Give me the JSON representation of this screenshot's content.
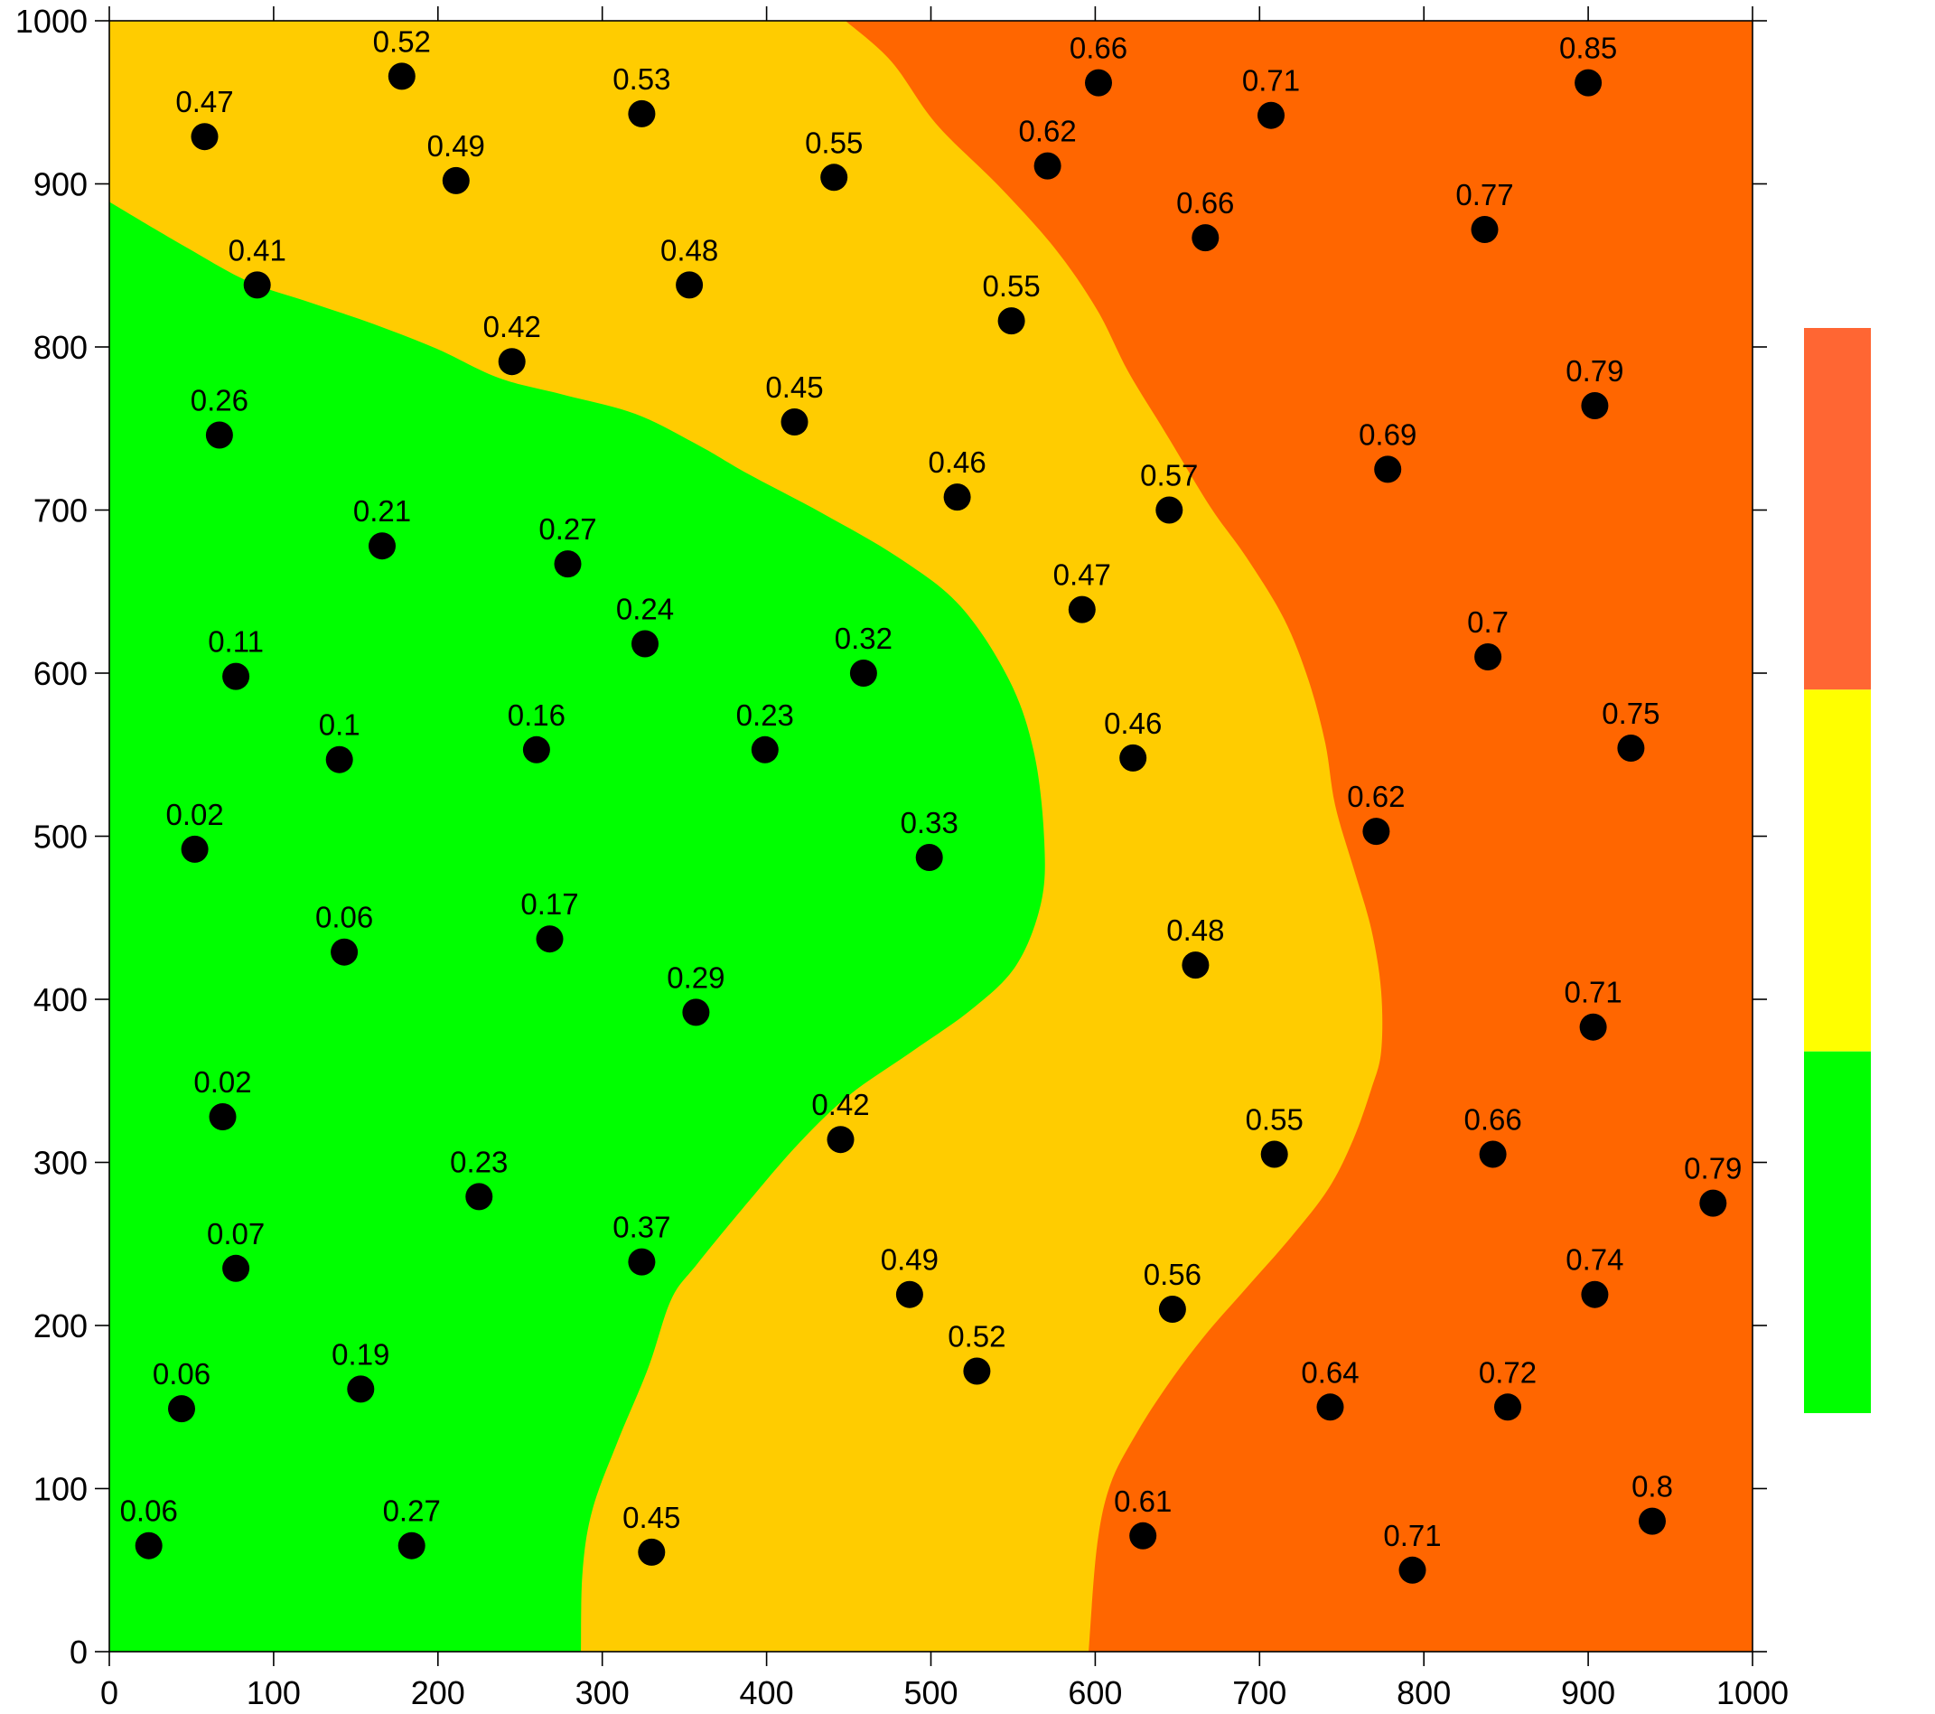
{
  "chart_data": {
    "type": "scatter",
    "xlim": [
      0,
      1000
    ],
    "ylim": [
      0,
      1000
    ],
    "xticks": [
      0,
      100,
      200,
      300,
      400,
      500,
      600,
      700,
      800,
      900,
      1000
    ],
    "yticks": [
      0,
      100,
      200,
      300,
      400,
      500,
      600,
      700,
      800,
      900,
      1000
    ],
    "grid": false,
    "background_color": "#FFCC00",
    "contour_regions": [
      {
        "color": "#00FF00",
        "boundary": [
          [
            0,
            889
          ],
          [
            47,
            861
          ],
          [
            85,
            840
          ],
          [
            123,
            827
          ],
          [
            161,
            814
          ],
          [
            199,
            799
          ],
          [
            237,
            781
          ],
          [
            275,
            771
          ],
          [
            320,
            759
          ],
          [
            358,
            740
          ],
          [
            389,
            722
          ],
          [
            434,
            698
          ],
          [
            480,
            671
          ],
          [
            518,
            641
          ],
          [
            548,
            595
          ],
          [
            563,
            550
          ],
          [
            569,
            497
          ],
          [
            567,
            459
          ],
          [
            552,
            421
          ],
          [
            525,
            394
          ],
          [
            487,
            367
          ],
          [
            450,
            341
          ],
          [
            419,
            311
          ],
          [
            389,
            276
          ],
          [
            358,
            238
          ],
          [
            342,
            216
          ],
          [
            328,
            174
          ],
          [
            309,
            128
          ],
          [
            294,
            87
          ],
          [
            288,
            49
          ],
          [
            287,
            0
          ]
        ],
        "closing_vertices": [
          [
            0,
            0
          ]
        ]
      },
      {
        "color": "#FF6600",
        "boundary": [
          [
            448,
            1000
          ],
          [
            476,
            975
          ],
          [
            503,
            937
          ],
          [
            541,
            899
          ],
          [
            575,
            861
          ],
          [
            601,
            823
          ],
          [
            620,
            785
          ],
          [
            643,
            747
          ],
          [
            670,
            702
          ],
          [
            692,
            671
          ],
          [
            715,
            633
          ],
          [
            730,
            595
          ],
          [
            740,
            557
          ],
          [
            746,
            519
          ],
          [
            757,
            481
          ],
          [
            768,
            443
          ],
          [
            774,
            405
          ],
          [
            774,
            368
          ],
          [
            768,
            345
          ],
          [
            757,
            314
          ],
          [
            742,
            284
          ],
          [
            719,
            254
          ],
          [
            692,
            223
          ],
          [
            666,
            193
          ],
          [
            643,
            162
          ],
          [
            624,
            132
          ],
          [
            609,
            102
          ],
          [
            601,
            64
          ],
          [
            596,
            0
          ]
        ],
        "closing_vertices": [
          [
            1000,
            0
          ],
          [
            1000,
            1000
          ]
        ]
      }
    ],
    "points": [
      {
        "x": 58,
        "y": 929,
        "value": 0.47
      },
      {
        "x": 178,
        "y": 966,
        "value": 0.52
      },
      {
        "x": 211,
        "y": 902,
        "value": 0.49
      },
      {
        "x": 324,
        "y": 943,
        "value": 0.53
      },
      {
        "x": 441,
        "y": 904,
        "value": 0.55
      },
      {
        "x": 90,
        "y": 838,
        "value": 0.41
      },
      {
        "x": 353,
        "y": 838,
        "value": 0.48
      },
      {
        "x": 245,
        "y": 791,
        "value": 0.42
      },
      {
        "x": 67,
        "y": 746,
        "value": 0.26
      },
      {
        "x": 417,
        "y": 754,
        "value": 0.45
      },
      {
        "x": 166,
        "y": 678,
        "value": 0.21
      },
      {
        "x": 279,
        "y": 667,
        "value": 0.27
      },
      {
        "x": 326,
        "y": 618,
        "value": 0.24
      },
      {
        "x": 77,
        "y": 598,
        "value": 0.11
      },
      {
        "x": 459,
        "y": 600,
        "value": 0.32
      },
      {
        "x": 140,
        "y": 547,
        "value": 0.1
      },
      {
        "x": 260,
        "y": 553,
        "value": 0.16
      },
      {
        "x": 399,
        "y": 553,
        "value": 0.23
      },
      {
        "x": 52,
        "y": 492,
        "value": 0.02
      },
      {
        "x": 499,
        "y": 487,
        "value": 0.33
      },
      {
        "x": 143,
        "y": 429,
        "value": 0.06
      },
      {
        "x": 268,
        "y": 437,
        "value": 0.17
      },
      {
        "x": 357,
        "y": 392,
        "value": 0.29
      },
      {
        "x": 69,
        "y": 328,
        "value": 0.02
      },
      {
        "x": 225,
        "y": 279,
        "value": 0.23
      },
      {
        "x": 445,
        "y": 314,
        "value": 0.42
      },
      {
        "x": 77,
        "y": 235,
        "value": 0.07
      },
      {
        "x": 324,
        "y": 239,
        "value": 0.37
      },
      {
        "x": 487,
        "y": 219,
        "value": 0.49
      },
      {
        "x": 528,
        "y": 172,
        "value": 0.52
      },
      {
        "x": 44,
        "y": 149,
        "value": 0.06
      },
      {
        "x": 153,
        "y": 161,
        "value": 0.19
      },
      {
        "x": 24,
        "y": 65,
        "value": 0.06
      },
      {
        "x": 184,
        "y": 65,
        "value": 0.27
      },
      {
        "x": 330,
        "y": 61,
        "value": 0.45
      },
      {
        "x": 602,
        "y": 962,
        "value": 0.66
      },
      {
        "x": 707,
        "y": 942,
        "value": 0.71
      },
      {
        "x": 900,
        "y": 962,
        "value": 0.85
      },
      {
        "x": 571,
        "y": 911,
        "value": 0.62
      },
      {
        "x": 667,
        "y": 867,
        "value": 0.66
      },
      {
        "x": 837,
        "y": 872,
        "value": 0.77
      },
      {
        "x": 549,
        "y": 816,
        "value": 0.55
      },
      {
        "x": 904,
        "y": 764,
        "value": 0.79
      },
      {
        "x": 778,
        "y": 725,
        "value": 0.69
      },
      {
        "x": 516,
        "y": 708,
        "value": 0.46
      },
      {
        "x": 645,
        "y": 700,
        "value": 0.57
      },
      {
        "x": 592,
        "y": 639,
        "value": 0.47
      },
      {
        "x": 839,
        "y": 610,
        "value": 0.7
      },
      {
        "x": 926,
        "y": 554,
        "value": 0.75
      },
      {
        "x": 623,
        "y": 548,
        "value": 0.46
      },
      {
        "x": 771,
        "y": 503,
        "value": 0.62
      },
      {
        "x": 661,
        "y": 421,
        "value": 0.48
      },
      {
        "x": 903,
        "y": 383,
        "value": 0.71
      },
      {
        "x": 709,
        "y": 305,
        "value": 0.55
      },
      {
        "x": 842,
        "y": 305,
        "value": 0.66
      },
      {
        "x": 976,
        "y": 275,
        "value": 0.79
      },
      {
        "x": 904,
        "y": 219,
        "value": 0.74
      },
      {
        "x": 647,
        "y": 210,
        "value": 0.56
      },
      {
        "x": 743,
        "y": 150,
        "value": 0.64
      },
      {
        "x": 851,
        "y": 150,
        "value": 0.72
      },
      {
        "x": 939,
        "y": 80,
        "value": 0.8
      },
      {
        "x": 629,
        "y": 71,
        "value": 0.61
      },
      {
        "x": 793,
        "y": 50,
        "value": 0.71
      }
    ],
    "legend": {
      "placement": "right",
      "colors": [
        "#FF6633",
        "#FFFF00",
        "#00FF00"
      ]
    }
  }
}
